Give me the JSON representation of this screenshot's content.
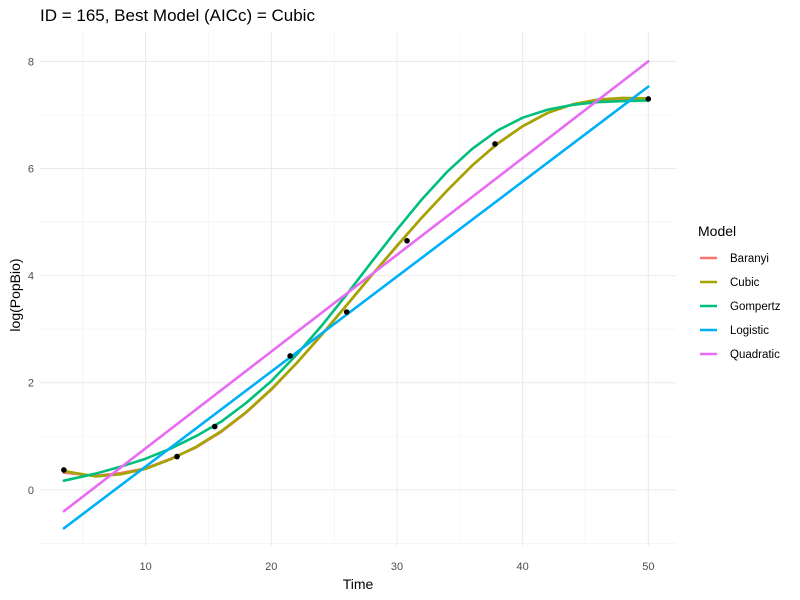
{
  "chart_data": {
    "type": "line",
    "title": "ID = 165, Best Model (AICc) = Cubic",
    "xlabel": "Time",
    "ylabel": "log(PopBio)",
    "xlim": [
      1.6,
      52.2
    ],
    "ylim": [
      -1.05,
      8.55
    ],
    "x_ticks": [
      10,
      20,
      30,
      40,
      50
    ],
    "y_ticks": [
      0,
      2,
      4,
      6,
      8
    ],
    "x_minor": [
      5,
      15,
      25,
      35,
      45
    ],
    "y_minor": [
      -1,
      1,
      3,
      5,
      7
    ],
    "grid": true,
    "legend_title": "Model",
    "legend_position": "right",
    "points": {
      "x": [
        3.5,
        12.5,
        15.5,
        21.5,
        26.0,
        30.8,
        37.8,
        50.0
      ],
      "y": [
        0.37,
        0.62,
        1.18,
        2.5,
        3.32,
        4.65,
        6.46,
        7.3
      ]
    },
    "series": [
      {
        "name": "Baranyi",
        "color": "#F8766D",
        "x": [
          3.5,
          6,
          8,
          10,
          12,
          14,
          16,
          18,
          20,
          22,
          24,
          26,
          28,
          30,
          32,
          34,
          36,
          38,
          40,
          42,
          44,
          46,
          48,
          50
        ],
        "y": [
          0.32,
          0.26,
          0.31,
          0.4,
          0.58,
          0.79,
          1.08,
          1.44,
          1.87,
          2.36,
          2.89,
          3.45,
          4.01,
          4.55,
          5.09,
          5.59,
          6.06,
          6.47,
          6.79,
          7.04,
          7.2,
          7.28,
          7.3,
          7.31
        ]
      },
      {
        "name": "Cubic",
        "color": "#A3A500",
        "x": [
          3.5,
          6,
          8,
          10,
          12,
          14,
          16,
          18,
          20,
          22,
          24,
          26,
          28,
          30,
          32,
          34,
          36,
          38,
          40,
          42,
          44,
          46,
          48,
          50
        ],
        "y": [
          0.35,
          0.25,
          0.29,
          0.39,
          0.57,
          0.8,
          1.09,
          1.45,
          1.88,
          2.36,
          2.89,
          3.45,
          4.01,
          4.56,
          5.09,
          5.59,
          6.06,
          6.46,
          6.79,
          7.04,
          7.2,
          7.29,
          7.32,
          7.31
        ]
      },
      {
        "name": "Gompertz",
        "color": "#00BF7D",
        "x": [
          3.5,
          6,
          8,
          10,
          12,
          14,
          16,
          18,
          20,
          22,
          24,
          26,
          28,
          30,
          32,
          34,
          36,
          38,
          40,
          42,
          44,
          46,
          48,
          50
        ],
        "y": [
          0.17,
          0.3,
          0.43,
          0.58,
          0.77,
          1.0,
          1.27,
          1.62,
          2.03,
          2.52,
          3.06,
          3.65,
          4.26,
          4.86,
          5.43,
          5.94,
          6.37,
          6.71,
          6.95,
          7.1,
          7.19,
          7.24,
          7.26,
          7.27
        ]
      },
      {
        "name": "Logistic",
        "color": "#00B0F6",
        "x": [
          3.5,
          50
        ],
        "y": [
          -0.72,
          7.53
        ]
      },
      {
        "name": "Quadratic",
        "color": "#E76BF3",
        "x": [
          3.5,
          50
        ],
        "y": [
          -0.4,
          8.0
        ]
      }
    ]
  }
}
